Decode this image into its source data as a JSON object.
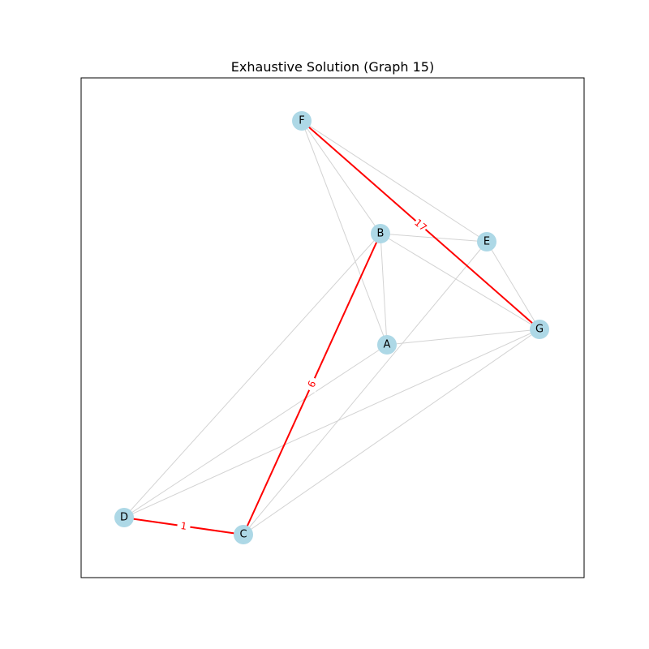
{
  "title": "Exhaustive Solution (Graph 15)",
  "colors": {
    "node_fill": "#add8e6",
    "edge_default": "#d3d3d3",
    "edge_highlight": "#ff0000",
    "frame": "#000000",
    "background": "#ffffff"
  },
  "nodes": [
    {
      "id": "A",
      "label": "A"
    },
    {
      "id": "B",
      "label": "B"
    },
    {
      "id": "C",
      "label": "C"
    },
    {
      "id": "D",
      "label": "D"
    },
    {
      "id": "E",
      "label": "E"
    },
    {
      "id": "F",
      "label": "F"
    },
    {
      "id": "G",
      "label": "G"
    }
  ],
  "edges": [
    {
      "source": "F",
      "target": "B",
      "highlight": false
    },
    {
      "source": "F",
      "target": "A",
      "highlight": false
    },
    {
      "source": "F",
      "target": "E",
      "highlight": false
    },
    {
      "source": "F",
      "target": "G",
      "highlight": true,
      "weight": "17"
    },
    {
      "source": "B",
      "target": "E",
      "highlight": false
    },
    {
      "source": "B",
      "target": "G",
      "highlight": false
    },
    {
      "source": "B",
      "target": "A",
      "highlight": false
    },
    {
      "source": "B",
      "target": "D",
      "highlight": false
    },
    {
      "source": "B",
      "target": "C",
      "highlight": true,
      "weight": "6"
    },
    {
      "source": "E",
      "target": "G",
      "highlight": false
    },
    {
      "source": "E",
      "target": "C",
      "highlight": false
    },
    {
      "source": "A",
      "target": "G",
      "highlight": false
    },
    {
      "source": "A",
      "target": "D",
      "highlight": false
    },
    {
      "source": "G",
      "target": "D",
      "highlight": false
    },
    {
      "source": "G",
      "target": "C",
      "highlight": false
    },
    {
      "source": "D",
      "target": "C",
      "highlight": true,
      "weight": "1"
    }
  ]
}
